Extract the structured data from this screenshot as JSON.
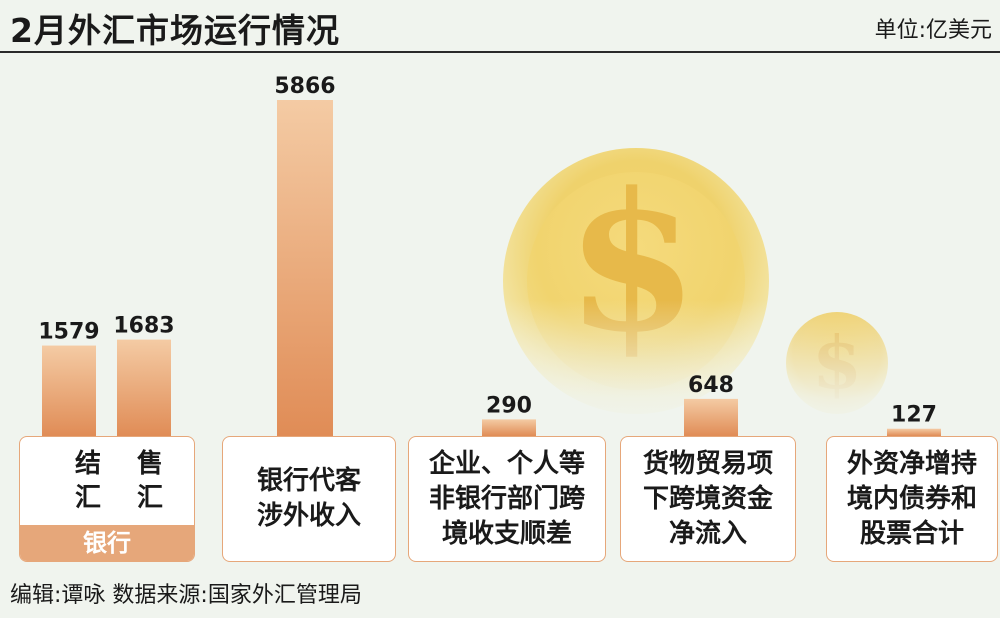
{
  "header": {
    "title": "2月外汇市场运行情况",
    "unit": "单位:亿美元"
  },
  "colors": {
    "bar_top": "#f4cba4",
    "bar_bottom": "#e08c56",
    "card_border": "#e6a77a",
    "coin": "#f1d46e",
    "background": "#f0f4ee"
  },
  "chart_data": {
    "type": "bar",
    "unit": "亿美元",
    "categories": [
      "结汇",
      "售汇",
      "银行代客涉外收入",
      "企业、个人等非银行部门跨境收支顺差",
      "货物贸易项下跨境资金净流入",
      "外资净增持境内债券和股票合计"
    ],
    "values": [
      1579,
      1683,
      5866,
      290,
      648,
      127
    ],
    "value_labels": [
      "1579",
      "1683",
      "5866",
      "290",
      "648",
      "127"
    ],
    "ylim": [
      0,
      6000
    ],
    "grid": false,
    "legend": "none"
  },
  "cards": {
    "bank": {
      "col1": "结\n汇",
      "col2": "售\n汇",
      "label": "银行"
    },
    "income": "银行代客\n涉外收入",
    "nonbank": "企业、个人等\n非银行部门跨\n境收支顺差",
    "trade": "货物贸易项\n下跨境资金\n净流入",
    "foreign": "外资净增持\n境内债券和\n股票合计"
  },
  "icons": [
    "dollar-coin-icon",
    "dollar-coin-small-icon"
  ],
  "dollar_symbol": "$",
  "footer": "编辑:谭咏  数据来源:国家外汇管理局"
}
